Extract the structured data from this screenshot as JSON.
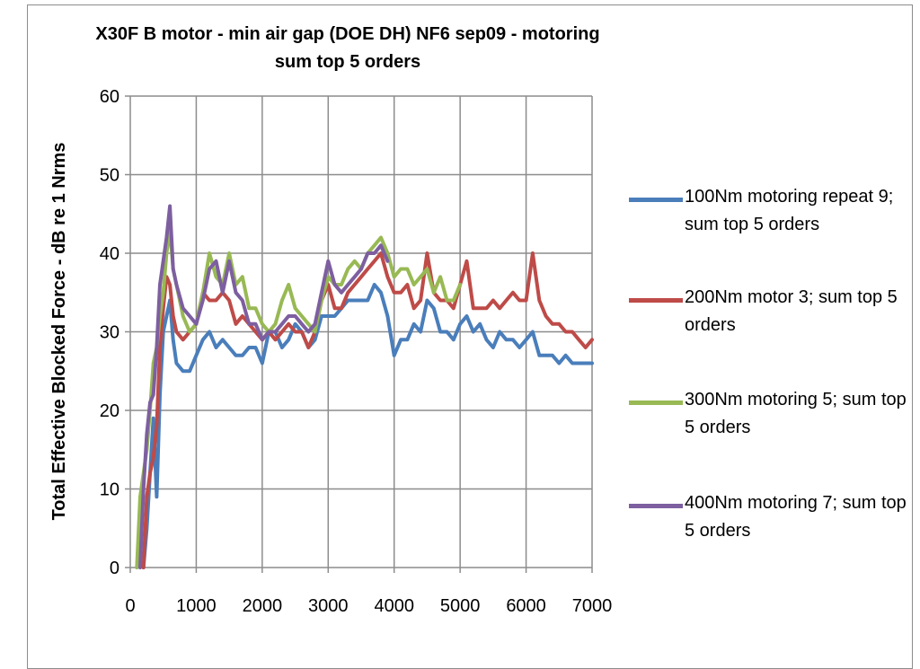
{
  "chart_data": {
    "type": "line",
    "title": "X30F B motor - min air gap (DOE DH) NF6 sep09 - motoring",
    "subtitle": "sum top 5 orders",
    "xlabel": "",
    "ylabel": "Total Effective Blocked Force - dB re 1 Nrms",
    "xlim": [
      0,
      7000
    ],
    "ylim": [
      0,
      60
    ],
    "xticks": [
      0,
      1000,
      2000,
      3000,
      4000,
      5000,
      6000,
      7000
    ],
    "yticks": [
      0,
      10,
      20,
      30,
      40,
      50,
      60
    ],
    "grid": true,
    "legend_position": "right",
    "series": [
      {
        "name": "100Nm motoring repeat 9; sum top 5 orders",
        "color": "#4a7ebb",
        "x": [
          200,
          250,
          300,
          350,
          400,
          450,
          500,
          550,
          600,
          650,
          700,
          800,
          900,
          1000,
          1100,
          1200,
          1300,
          1400,
          1500,
          1600,
          1700,
          1800,
          1900,
          2000,
          2100,
          2200,
          2300,
          2400,
          2500,
          2600,
          2700,
          2800,
          2900,
          3000,
          3100,
          3200,
          3300,
          3400,
          3500,
          3600,
          3700,
          3800,
          3900,
          4000,
          4100,
          4200,
          4300,
          4400,
          4500,
          4600,
          4700,
          4800,
          4900,
          5000,
          5100,
          5200,
          5300,
          5400,
          5500,
          5600,
          5700,
          5800,
          5900,
          6000,
          6100,
          6200,
          6300,
          6400,
          6500,
          6600,
          6700,
          6800,
          6900,
          7000
        ],
        "y": [
          0,
          5,
          12,
          19,
          9,
          22,
          30,
          32,
          34,
          29,
          26,
          25,
          25,
          27,
          29,
          30,
          28,
          29,
          28,
          27,
          27,
          28,
          28,
          26,
          30,
          30,
          28,
          29,
          31,
          30,
          28,
          29,
          32,
          32,
          32,
          33,
          34,
          34,
          34,
          34,
          36,
          35,
          32,
          27,
          29,
          29,
          31,
          30,
          34,
          33,
          30,
          30,
          29,
          31,
          32,
          30,
          31,
          29,
          28,
          30,
          29,
          29,
          28,
          29,
          30,
          27,
          27,
          27,
          26,
          27,
          26,
          26,
          26,
          26
        ]
      },
      {
        "name": "200Nm motor 3; sum top 5 orders",
        "color": "#be4b48",
        "x": [
          200,
          250,
          300,
          350,
          400,
          450,
          500,
          550,
          600,
          650,
          700,
          800,
          900,
          1000,
          1100,
          1200,
          1300,
          1400,
          1500,
          1600,
          1700,
          1800,
          1900,
          2000,
          2100,
          2200,
          2300,
          2400,
          2500,
          2600,
          2700,
          2800,
          2900,
          3000,
          3100,
          3200,
          3300,
          3400,
          3500,
          3600,
          3700,
          3800,
          3900,
          4000,
          4100,
          4200,
          4300,
          4400,
          4500,
          4600,
          4700,
          4800,
          4900,
          5000,
          5100,
          5200,
          5300,
          5400,
          5500,
          5600,
          5700,
          5800,
          5900,
          6000,
          6100,
          6200,
          6300,
          6400,
          6500,
          6600,
          6700,
          6800,
          6900,
          7000
        ],
        "y": [
          0,
          9,
          12,
          14,
          18,
          28,
          33,
          37,
          36,
          32,
          30,
          29,
          30,
          31,
          35,
          34,
          34,
          35,
          34,
          31,
          32,
          31,
          30,
          29,
          30,
          29,
          30,
          31,
          30,
          30,
          28,
          30,
          34,
          36,
          33,
          33,
          35,
          36,
          37,
          38,
          39,
          40,
          37,
          35,
          35,
          36,
          33,
          34,
          40,
          35,
          34,
          34,
          33,
          36,
          39,
          33,
          33,
          33,
          34,
          33,
          34,
          35,
          34,
          34,
          40,
          34,
          32,
          31,
          31,
          30,
          30,
          29,
          28,
          29
        ]
      },
      {
        "name": "300Nm motoring 5; sum top 5 orders",
        "color": "#98b954",
        "x": [
          100,
          150,
          200,
          250,
          300,
          350,
          400,
          450,
          500,
          550,
          600,
          650,
          700,
          800,
          900,
          1000,
          1100,
          1200,
          1300,
          1400,
          1500,
          1600,
          1700,
          1800,
          1900,
          2000,
          2100,
          2200,
          2300,
          2400,
          2500,
          2600,
          2700,
          2800,
          2900,
          3000,
          3100,
          3200,
          3300,
          3400,
          3500,
          3600,
          3700,
          3800,
          3900,
          4000,
          4100,
          4200,
          4300,
          4400,
          4500,
          4600,
          4700,
          4800,
          4900,
          5000
        ],
        "y": [
          0,
          9,
          12,
          15,
          20,
          26,
          28,
          32,
          35,
          40,
          43,
          38,
          36,
          32,
          30,
          31,
          35,
          40,
          37,
          36,
          40,
          36,
          37,
          33,
          33,
          31,
          30,
          31,
          34,
          36,
          33,
          32,
          31,
          30,
          34,
          37,
          36,
          36,
          38,
          39,
          38,
          40,
          41,
          42,
          40,
          37,
          38,
          38,
          36,
          37,
          38,
          35,
          37,
          34,
          34,
          36
        ]
      },
      {
        "name": "400Nm motoring 7; sum top 5 orders",
        "color": "#7d5fa0",
        "x": [
          150,
          200,
          250,
          300,
          350,
          400,
          450,
          500,
          550,
          600,
          650,
          700,
          800,
          900,
          1000,
          1100,
          1200,
          1300,
          1400,
          1500,
          1600,
          1700,
          1800,
          1900,
          2000,
          2100,
          2200,
          2300,
          2400,
          2500,
          2600,
          2700,
          2800,
          2900,
          3000,
          3100,
          3200,
          3300,
          3400,
          3500,
          3600,
          3700,
          3800,
          3900
        ],
        "y": [
          0,
          10,
          17,
          21,
          22,
          28,
          36,
          39,
          42,
          46,
          38,
          36,
          33,
          32,
          31,
          34,
          38,
          39,
          35,
          39,
          35,
          34,
          31,
          31,
          29,
          30,
          30,
          31,
          32,
          32,
          31,
          30,
          31,
          35,
          39,
          36,
          35,
          36,
          37,
          38,
          40,
          40,
          41,
          39
        ]
      }
    ]
  }
}
